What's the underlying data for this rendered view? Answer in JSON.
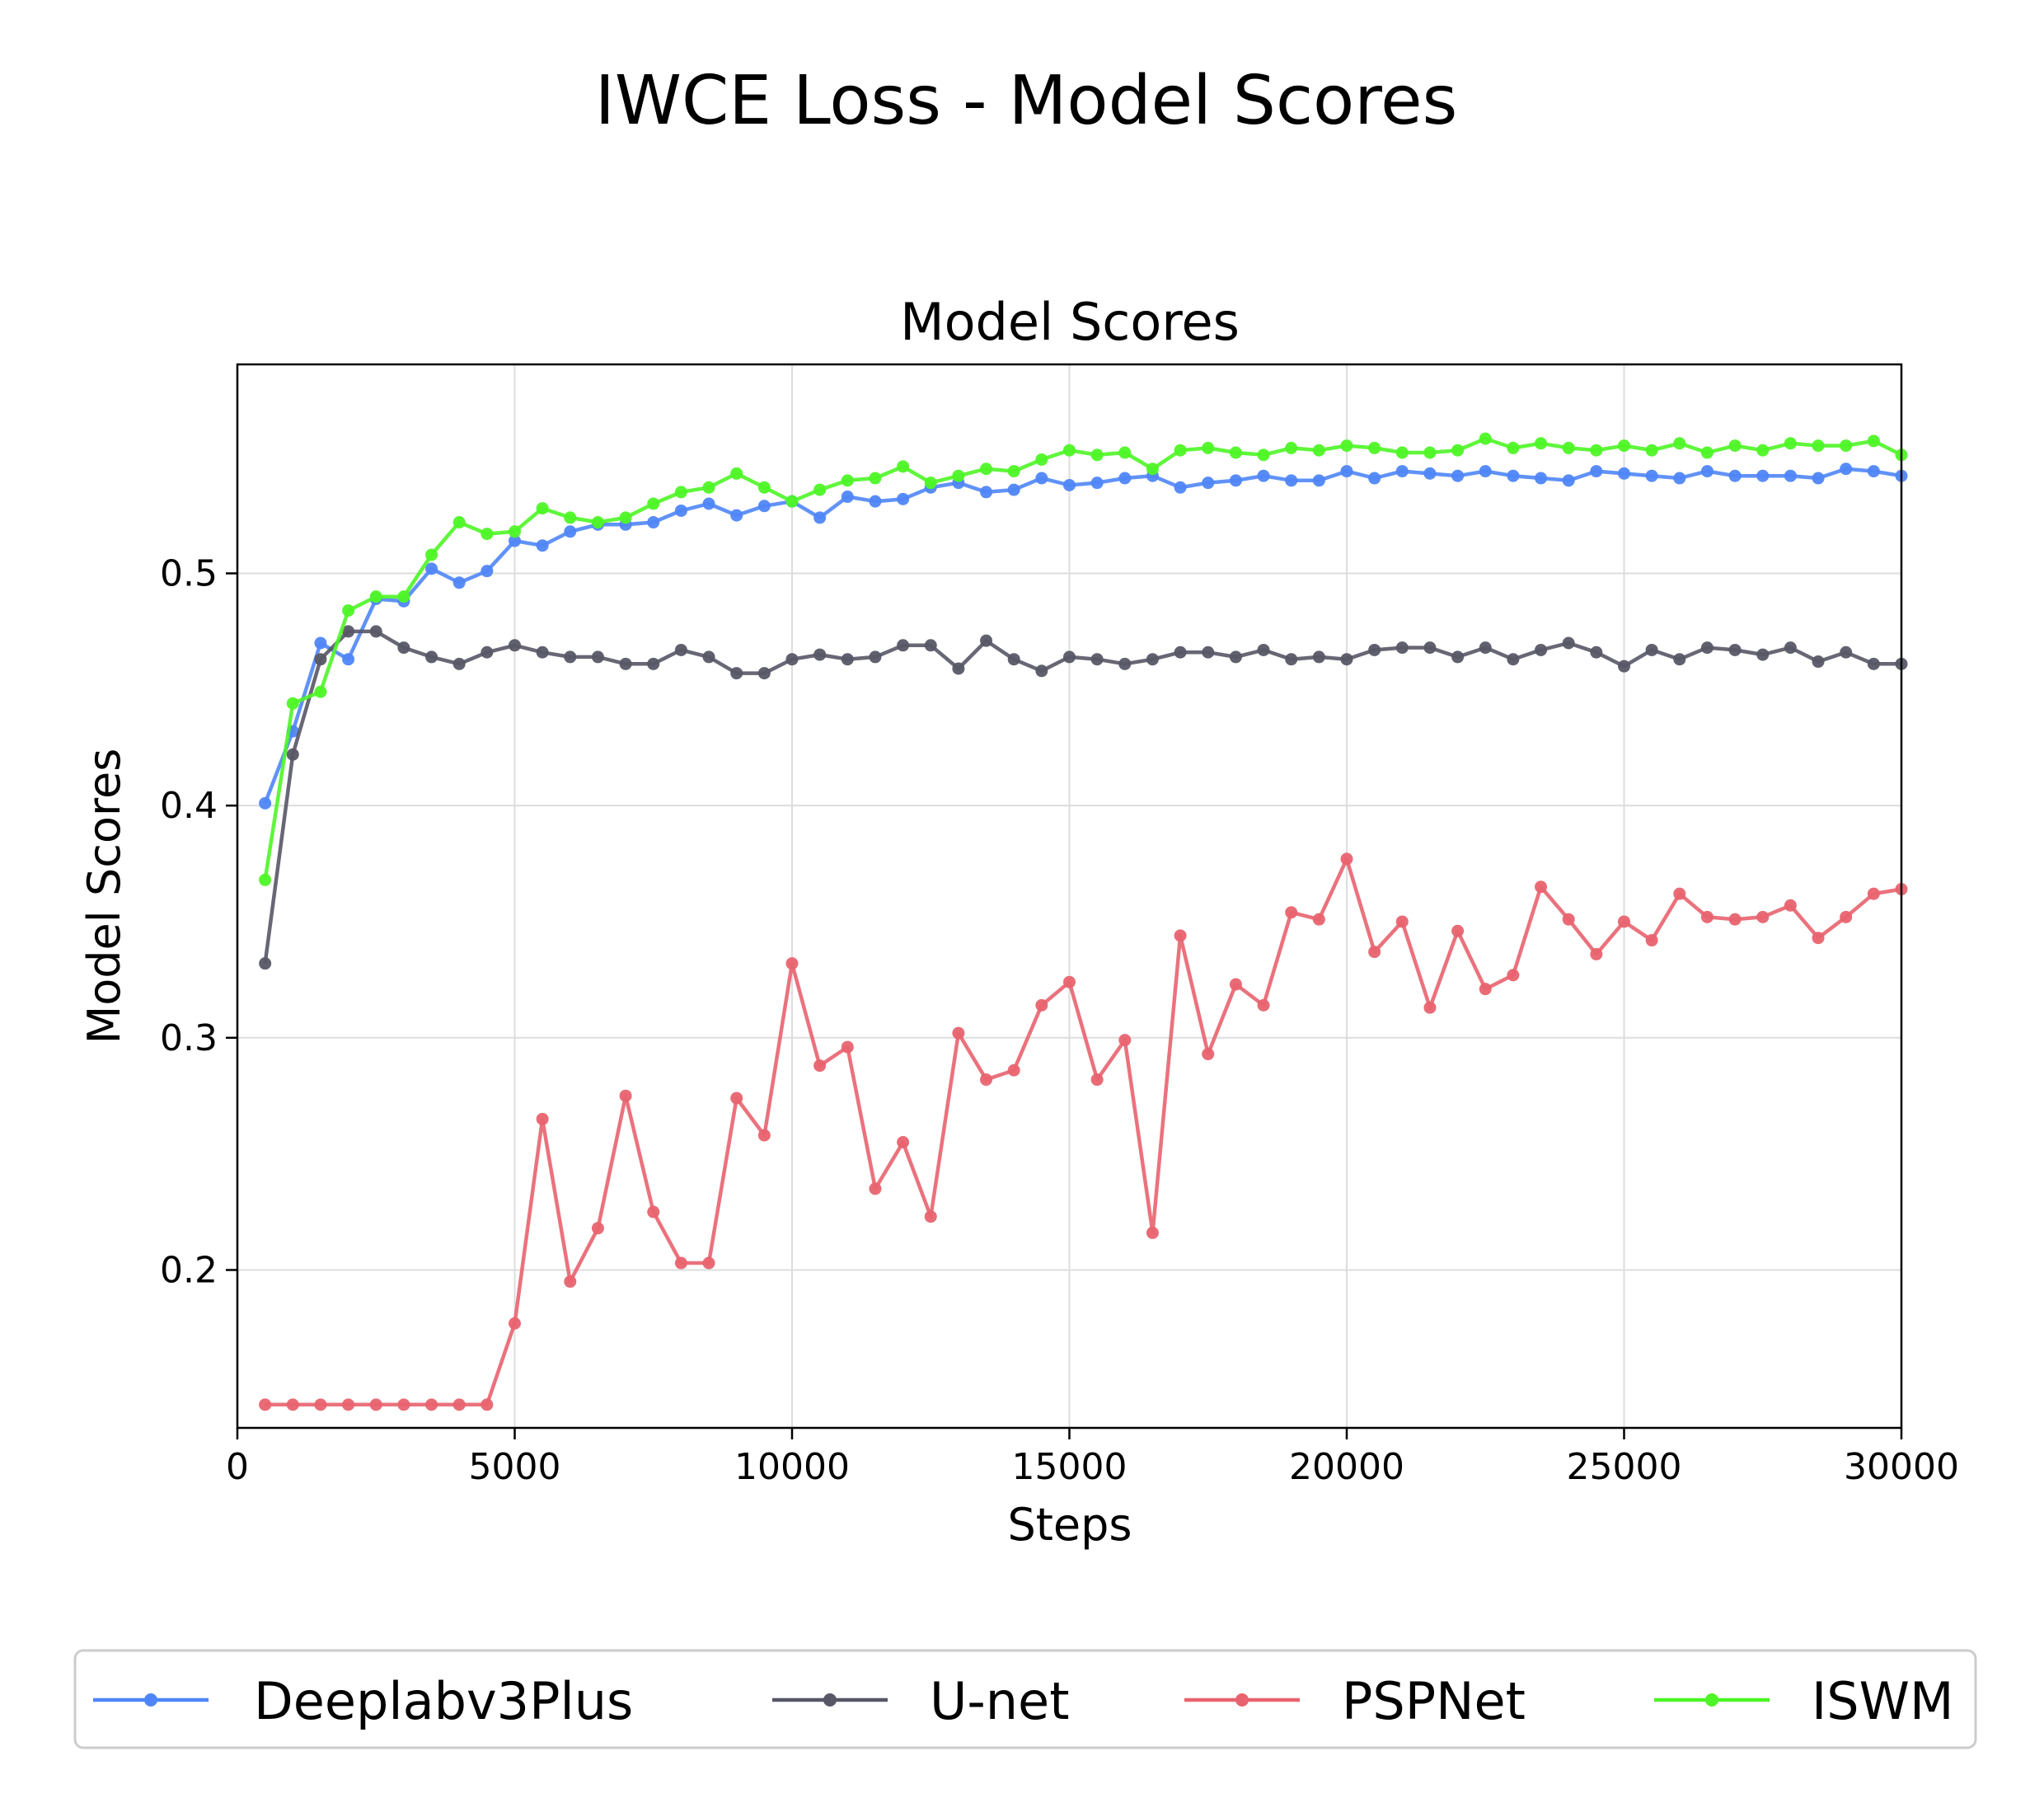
{
  "figure_title": "IWCE Loss - Model Scores",
  "chart_data": {
    "type": "line",
    "title": "Model Scores",
    "xlabel": "Steps",
    "ylabel": "Model Scores",
    "xlim": [
      0,
      30000
    ],
    "ylim": [
      0.132,
      0.59
    ],
    "grid": true,
    "legend_position": "bottom-center",
    "x_ticks": [
      "0",
      "5000",
      "10000",
      "15000",
      "20000",
      "25000",
      "30000"
    ],
    "y_ticks": [
      "0.2",
      "0.3",
      "0.4",
      "0.5"
    ],
    "x_tick_values": [
      0,
      5000,
      10000,
      15000,
      20000,
      25000,
      30000
    ],
    "y_tick_values": [
      0.2,
      0.3,
      0.4,
      0.5
    ],
    "x": [
      500,
      1000,
      1500,
      2000,
      2500,
      3000,
      3500,
      4000,
      4500,
      5000,
      5500,
      6000,
      6500,
      7000,
      7500,
      8000,
      8500,
      9000,
      9500,
      10000,
      10500,
      11000,
      11500,
      12000,
      12500,
      13000,
      13500,
      14000,
      14500,
      15000,
      15500,
      16000,
      16500,
      17000,
      17500,
      18000,
      18500,
      19000,
      19500,
      20000,
      20500,
      21000,
      21500,
      22000,
      22500,
      23000,
      23500,
      24000,
      24500,
      25000,
      25500,
      26000,
      26500,
      27000,
      27500,
      28000,
      28500,
      29000,
      29500,
      30000
    ],
    "series": [
      {
        "name": "Deeplabv3Plus",
        "color": "#4f86f7",
        "values": [
          0.401,
          0.432,
          0.47,
          0.463,
          0.489,
          0.488,
          0.502,
          0.496,
          0.501,
          0.514,
          0.512,
          0.518,
          0.521,
          0.521,
          0.522,
          0.527,
          0.53,
          0.525,
          0.529,
          0.531,
          0.524,
          0.533,
          0.531,
          0.532,
          0.537,
          0.539,
          0.535,
          0.536,
          0.541,
          0.538,
          0.539,
          0.541,
          0.542,
          0.537,
          0.539,
          0.54,
          0.542,
          0.54,
          0.54,
          0.544,
          0.541,
          0.544,
          0.543,
          0.542,
          0.544,
          0.542,
          0.541,
          0.54,
          0.544,
          0.543,
          0.542,
          0.541,
          0.544,
          0.542,
          0.542,
          0.542,
          0.541,
          0.545,
          0.544,
          0.542
        ]
      },
      {
        "name": "U-net",
        "color": "#575766",
        "values": [
          0.332,
          0.422,
          0.463,
          0.475,
          0.475,
          0.468,
          0.464,
          0.461,
          0.466,
          0.469,
          0.466,
          0.464,
          0.464,
          0.461,
          0.461,
          0.467,
          0.464,
          0.457,
          0.457,
          0.463,
          0.465,
          0.463,
          0.464,
          0.469,
          0.469,
          0.459,
          0.471,
          0.463,
          0.458,
          0.464,
          0.463,
          0.461,
          0.463,
          0.466,
          0.466,
          0.464,
          0.467,
          0.463,
          0.464,
          0.463,
          0.467,
          0.468,
          0.468,
          0.464,
          0.468,
          0.463,
          0.467,
          0.47,
          0.466,
          0.46,
          0.467,
          0.463,
          0.468,
          0.467,
          0.465,
          0.468,
          0.462,
          0.466,
          0.461,
          0.461
        ]
      },
      {
        "name": "PSPNet",
        "color": "#e8636f",
        "values": [
          0.142,
          0.142,
          0.142,
          0.142,
          0.142,
          0.142,
          0.142,
          0.142,
          0.142,
          0.177,
          0.265,
          0.195,
          0.218,
          0.275,
          0.225,
          0.203,
          0.203,
          0.274,
          0.258,
          0.332,
          0.288,
          0.296,
          0.235,
          0.255,
          0.223,
          0.302,
          0.282,
          0.286,
          0.314,
          0.324,
          0.282,
          0.299,
          0.216,
          0.344,
          0.293,
          0.323,
          0.314,
          0.354,
          0.351,
          0.377,
          0.337,
          0.35,
          0.313,
          0.346,
          0.321,
          0.327,
          0.365,
          0.351,
          0.336,
          0.35,
          0.342,
          0.362,
          0.352,
          0.351,
          0.352,
          0.357,
          0.343,
          0.352,
          0.362,
          0.364
        ]
      },
      {
        "name": "ISWM",
        "color": "#4ef526",
        "values": [
          0.368,
          0.444,
          0.449,
          0.484,
          0.49,
          0.49,
          0.508,
          0.522,
          0.517,
          0.518,
          0.528,
          0.524,
          0.522,
          0.524,
          0.53,
          0.535,
          0.537,
          0.543,
          0.537,
          0.531,
          0.536,
          0.54,
          0.541,
          0.546,
          0.539,
          0.542,
          0.545,
          0.544,
          0.549,
          0.553,
          0.551,
          0.552,
          0.545,
          0.553,
          0.554,
          0.552,
          0.551,
          0.554,
          0.553,
          0.555,
          0.554,
          0.552,
          0.552,
          0.553,
          0.558,
          0.554,
          0.556,
          0.554,
          0.553,
          0.555,
          0.553,
          0.556,
          0.552,
          0.555,
          0.553,
          0.556,
          0.555,
          0.555,
          0.557,
          0.551
        ]
      }
    ]
  }
}
